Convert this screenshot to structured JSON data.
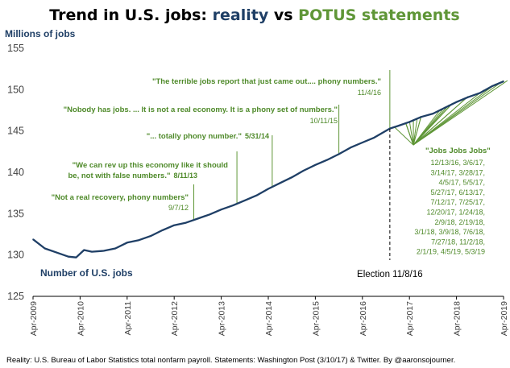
{
  "title": {
    "part1": "Trend in U.S. jobs: ",
    "part2": "reality",
    "part3": " vs ",
    "part4": "POTUS statements"
  },
  "colors": {
    "reality": "#1f3f66",
    "statements": "#5f9637",
    "dark": "#000000",
    "grid_text": "#404040"
  },
  "footer": "Reality: U.S. Bureau of Labor Statistics total nonfarm payroll. Statements: Washington Post (3/10/17) & Twitter. By @aaronsojourner.",
  "election_label": "Election 11/8/16",
  "series_label": "Number of U.S. jobs",
  "chart_data": {
    "type": "line",
    "ylabel": "Millions of jobs",
    "xlabel": "",
    "ylim": [
      125,
      155
    ],
    "yticks": [
      125,
      130,
      135,
      140,
      145,
      150,
      155
    ],
    "xticks": [
      "Apr-2009",
      "Apr-2010",
      "Apr-2011",
      "Apr-2012",
      "Apr-2013",
      "Apr-2014",
      "Apr-2015",
      "Apr-2016",
      "Apr-2017",
      "Apr-2018",
      "Apr-2019"
    ],
    "grid": false,
    "series": [
      {
        "name": "Number of U.S. jobs",
        "x": [
          "2009-04",
          "2009-07",
          "2009-10",
          "2010-01",
          "2010-03",
          "2010-05",
          "2010-07",
          "2010-10",
          "2011-01",
          "2011-04",
          "2011-07",
          "2011-10",
          "2012-01",
          "2012-04",
          "2012-07",
          "2012-10",
          "2013-01",
          "2013-04",
          "2013-07",
          "2013-10",
          "2014-01",
          "2014-04",
          "2014-07",
          "2014-10",
          "2015-01",
          "2015-04",
          "2015-07",
          "2015-10",
          "2016-01",
          "2016-04",
          "2016-07",
          "2016-11",
          "2017-01",
          "2017-04",
          "2017-07",
          "2017-10",
          "2018-01",
          "2018-04",
          "2018-07",
          "2018-10",
          "2019-01",
          "2019-04"
        ],
        "y": [
          131.9,
          130.8,
          130.3,
          129.8,
          129.7,
          130.6,
          130.4,
          130.5,
          130.8,
          131.5,
          131.8,
          132.3,
          133.0,
          133.6,
          133.9,
          134.4,
          134.9,
          135.5,
          136.0,
          136.6,
          137.2,
          138.0,
          138.7,
          139.4,
          140.2,
          140.9,
          141.5,
          142.2,
          143.0,
          143.6,
          144.2,
          145.3,
          145.6,
          146.1,
          146.7,
          147.1,
          147.8,
          148.5,
          149.1,
          149.6,
          150.4,
          151.0
        ]
      }
    ],
    "election": {
      "x": "2016-11"
    },
    "statements": [
      {
        "quote": "\"Not a real recovery, phony numbers\"",
        "date": "9/7/12",
        "x": "2012-09"
      },
      {
        "quote": "\"We can rev up this economy like it should",
        "quote2": "be, not with false numbers.\"",
        "date": "8/11/13",
        "x": "2013-08"
      },
      {
        "quote": "\"... totally phony number.\"",
        "date": "5/31/14",
        "x": "2014-05"
      },
      {
        "quote": "\"Nobody has jobs. ... It is not a real economy. It is a phony set of numbers.\"",
        "date": "10/11/15",
        "x": "2015-10"
      },
      {
        "quote": "\"The terrible jobs report that just came out.... phony numbers.\"",
        "date": "11/4/16",
        "x": "2016-11"
      }
    ],
    "jobs_tweets": {
      "quote": "\"Jobs Jobs Jobs\"",
      "dates": [
        "12/13/16, 3/6/17,",
        "3/14/17, 3/28/17,",
        "4/5/17, 5/5/17,",
        "5/27/17, 6/13/17,",
        "7/12/17, 7/25/17,",
        "12/20/17, 1/24/18,",
        "2/9/18, 2/19/18,",
        "3/1/18, 3/9/18, 7/6/18,",
        "7/27/18, 11/2/18,",
        "2/1/19, 4/5/19, 5/3/19"
      ],
      "x": [
        "2016-12",
        "2017-03",
        "2017-03",
        "2017-03",
        "2017-04",
        "2017-05",
        "2017-05",
        "2017-06",
        "2017-07",
        "2017-07",
        "2017-12",
        "2018-01",
        "2018-02",
        "2018-02",
        "2018-03",
        "2018-03",
        "2018-07",
        "2018-07",
        "2018-11",
        "2019-02",
        "2019-04",
        "2019-05"
      ]
    }
  }
}
